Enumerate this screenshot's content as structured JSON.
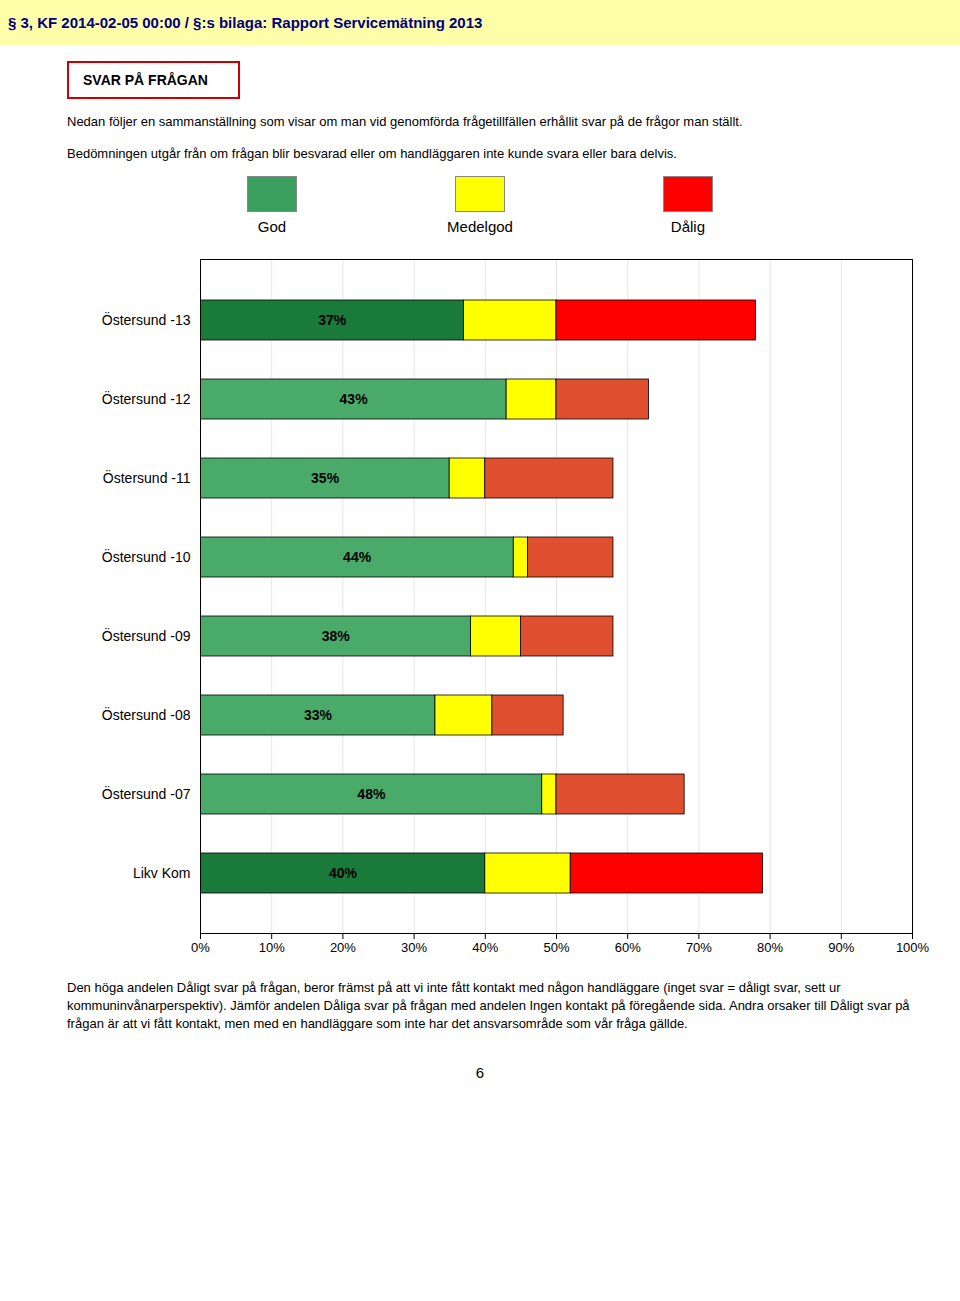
{
  "chart_data": {
    "type": "bar",
    "orientation": "horizontal",
    "stacked": true,
    "title": "SVAR PÅ FRÅGAN",
    "subtitle": [
      "Nedan följer en sammanställning som visar om man vid genomförda frågetillfällen erhållit svar på de frågor man ställt.",
      "Bedömningen utgår från om frågan blir besvarad eller om handläggaren inte kunde svara eller bara delvis."
    ],
    "annotations": [
      "§ 3, KF 2014-02-05 00:00 / §:s bilaga: Rapport Servicemätning 2013",
      "Den höga andelen Dåligt svar på frågan, beror främst på att vi inte fått kontakt med någon handläggare (inget svar = dåligt svar, sett ur kommuninvånarperspektiv). Jämför andelen Dåliga svar på frågan med andelen Ingen kontakt på föregående sida. Andra orsaker till Dåligt svar på frågan är att vi fått kontakt, men med en handläggare som inte har det ansvarsområde som vår fråga gällde.",
      "6"
    ],
    "categories": [
      "Östersund -13",
      "Östersund -12",
      "Östersund -11",
      "Östersund -10",
      "Östersund -09",
      "Östersund -08",
      "Östersund -07",
      "Likv Kom"
    ],
    "series": [
      {
        "name": "God",
        "color": "#3a9e5f",
        "colors": [
          "#1a7a3a",
          "#4aaa6a",
          "#4aaa6a",
          "#4aaa6a",
          "#4aaa6a",
          "#4aaa6a",
          "#4aaa6a",
          "#1a7a3a"
        ],
        "values": [
          37,
          43,
          35,
          44,
          38,
          33,
          48,
          40
        ],
        "value_labels": [
          "37%",
          "43%",
          "35%",
          "44%",
          "38%",
          "33%",
          "48%",
          "40%"
        ]
      },
      {
        "name": "Medelgod",
        "color": "#ffff00",
        "values": [
          13,
          7,
          5,
          2,
          7,
          8,
          2,
          12
        ]
      },
      {
        "name": "Dålig",
        "color": "#ff0000",
        "colors": [
          "#ff0000",
          "#e05030",
          "#e05030",
          "#e05030",
          "#e05030",
          "#e05030",
          "#e05030",
          "#ff0000"
        ],
        "values": [
          28,
          13,
          18,
          12,
          13,
          10,
          18,
          27
        ]
      }
    ],
    "xlim": [
      0,
      100
    ],
    "xticks": [
      {
        "value": 0,
        "label": "0%"
      },
      {
        "value": 10,
        "label": "10%"
      },
      {
        "value": 20,
        "label": "20%"
      },
      {
        "value": 30,
        "label": "30%"
      },
      {
        "value": 40,
        "label": "40%"
      },
      {
        "value": 50,
        "label": "50%"
      },
      {
        "value": 60,
        "label": "60%"
      },
      {
        "value": 70,
        "label": "70%"
      },
      {
        "value": 80,
        "label": "80%"
      },
      {
        "value": 90,
        "label": "90%"
      },
      {
        "value": 100,
        "label": "100%"
      }
    ],
    "grid": true,
    "data_labels": true,
    "legend": "top"
  }
}
